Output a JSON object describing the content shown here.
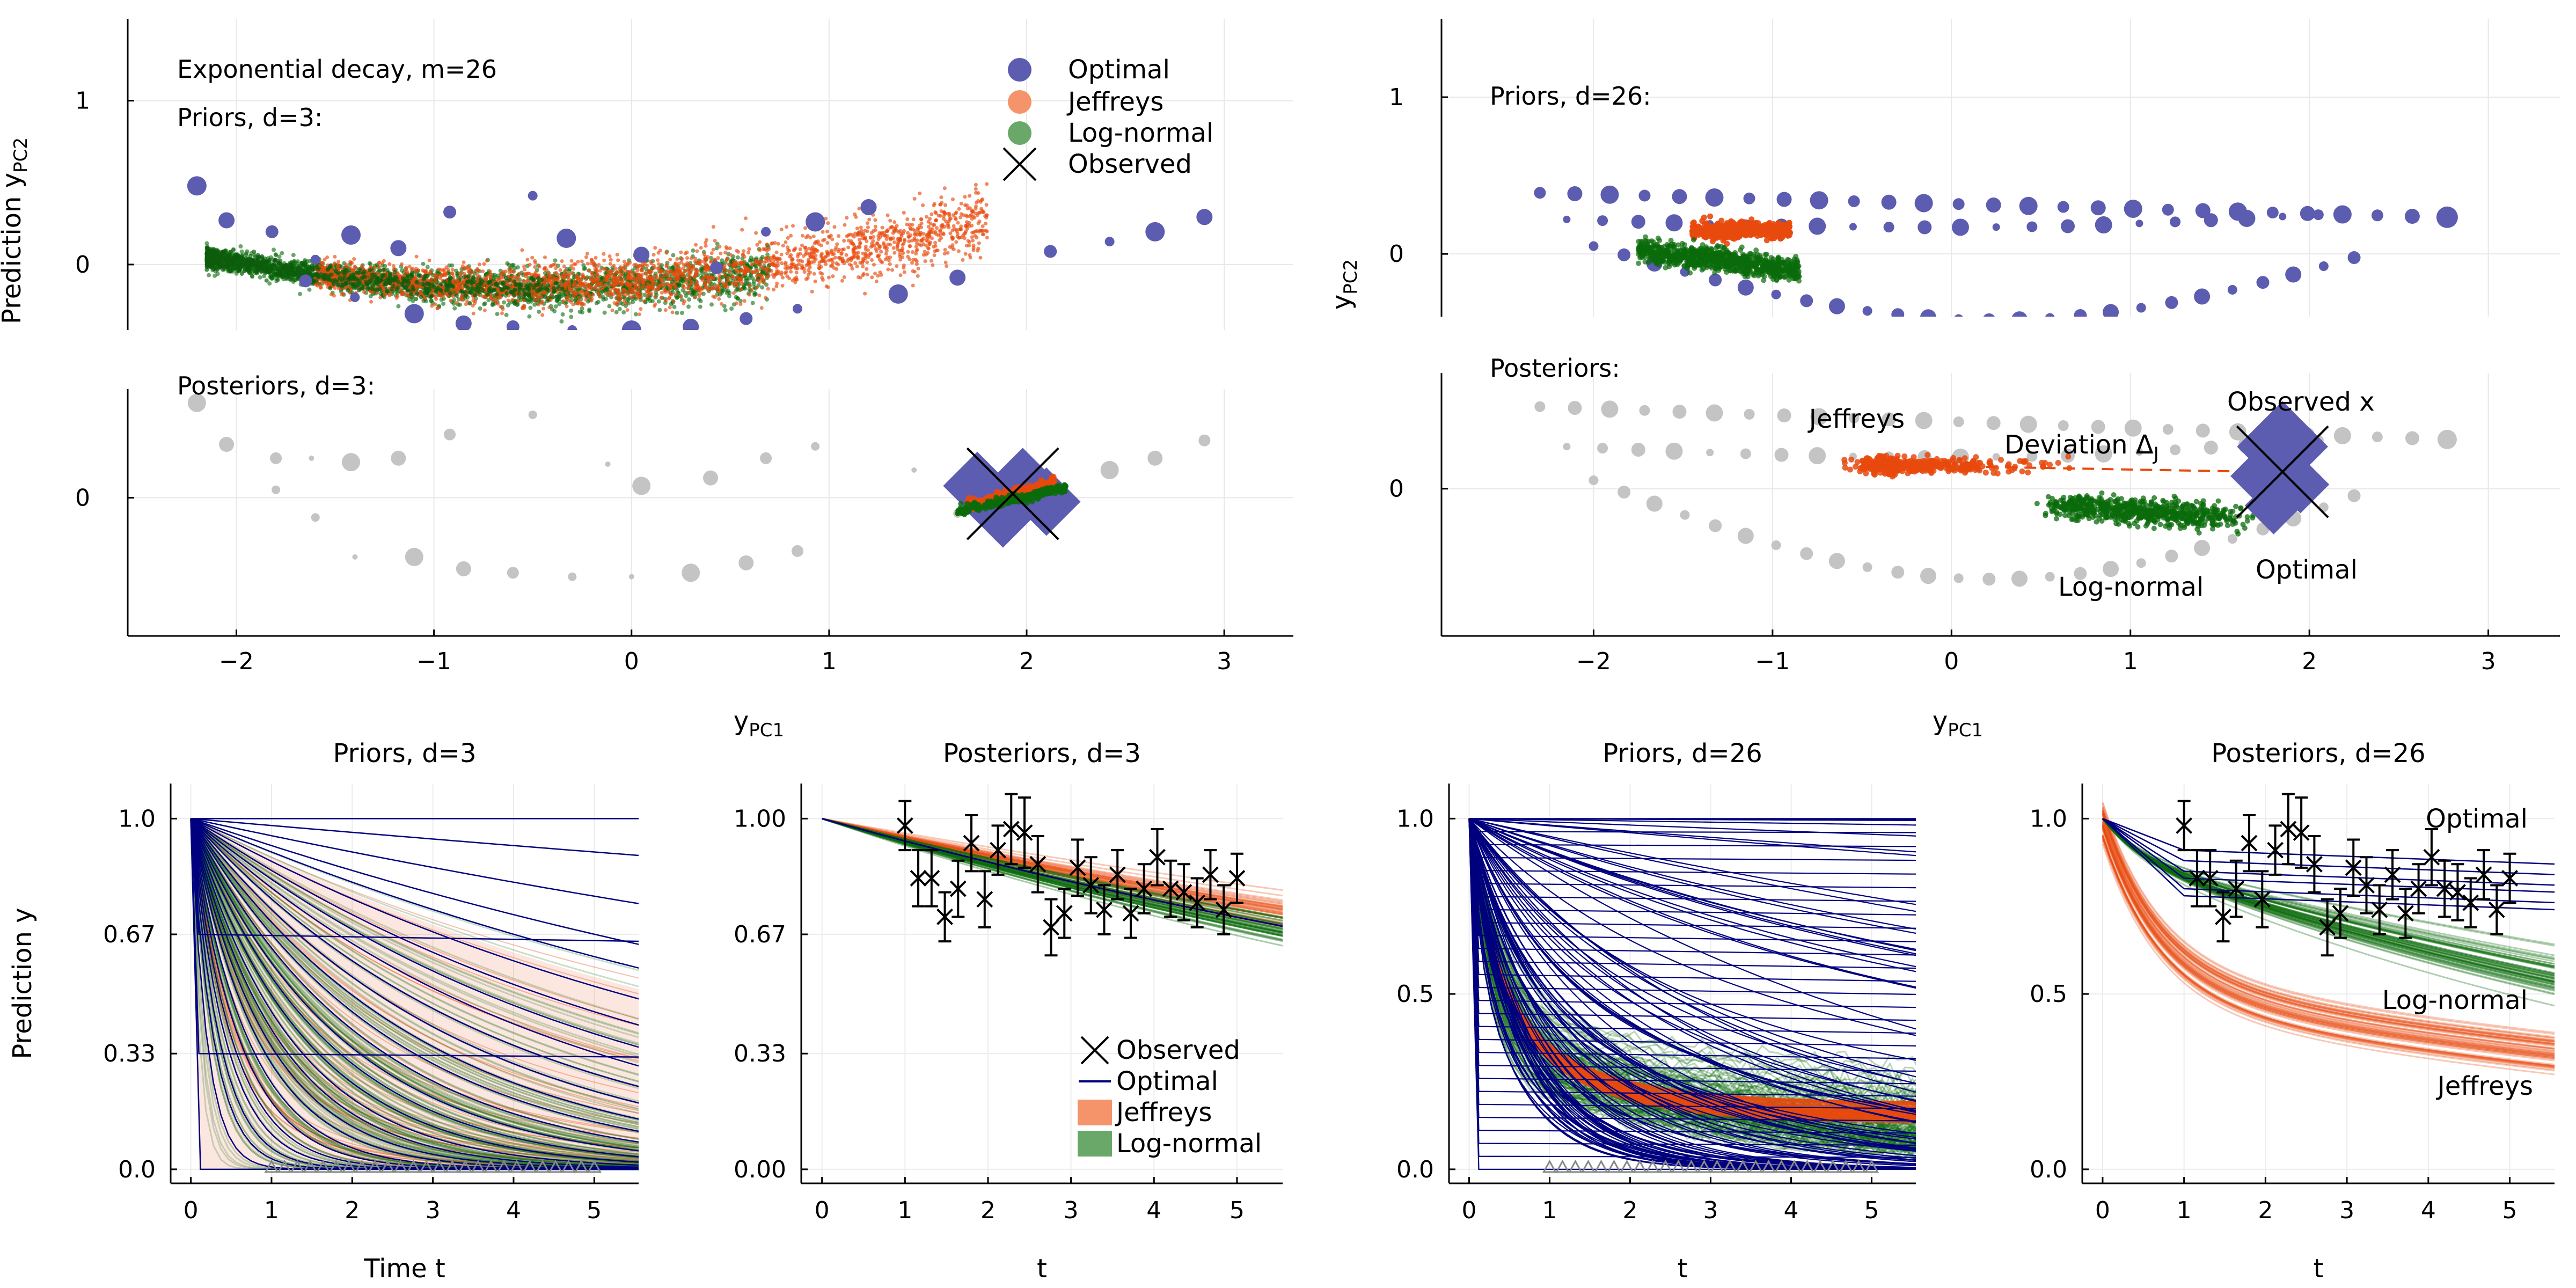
{
  "colors": {
    "optimal": "#00007f",
    "optimal_fill": "#5c5cb0",
    "jeffreys": "#e8490d",
    "jeffreys_fill": "#f5946a",
    "lognormal": "#0a6b0a",
    "lognormal_fill": "#6aa86a",
    "grey": "#c4c4c4"
  },
  "chart_data": [
    {
      "id": "pca_d3",
      "type": "scatter",
      "xlabel": "y",
      "xlabel_sub": "PC1",
      "ylabel": "Prediction y",
      "ylabel_sub": "PC2",
      "xlim": [
        -2.55,
        3.35
      ],
      "x_ticks": [
        -2,
        -1,
        0,
        1,
        2,
        3
      ],
      "top": {
        "ylim": [
          -0.4,
          1.5
        ],
        "y_ticks": [
          0,
          1
        ],
        "annotations": [
          "Exponential decay, m=26",
          "Priors, d=3:"
        ]
      },
      "bottom": {
        "ylim": [
          -0.7,
          0.55
        ],
        "y_ticks": [
          0
        ],
        "annotations": [
          "Posteriors, d=3:"
        ]
      },
      "legend": {
        "placement": "top-right",
        "entries": [
          "Optimal",
          "Jeffreys",
          "Log-normal",
          "Observed"
        ]
      },
      "observed": [
        1.93,
        0.02
      ],
      "optimal_prior": [
        [
          -2.2,
          0.48
        ],
        [
          -2.05,
          0.27
        ],
        [
          -1.82,
          0.2
        ],
        [
          -1.6,
          0.03
        ],
        [
          -1.42,
          0.18
        ],
        [
          -1.18,
          0.1
        ],
        [
          -0.92,
          0.32
        ],
        [
          -0.5,
          0.42
        ],
        [
          -0.33,
          0.16
        ],
        [
          0.05,
          0.06
        ],
        [
          0.43,
          -0.02
        ],
        [
          0.68,
          0.2
        ],
        [
          0.93,
          0.26
        ],
        [
          1.2,
          0.35
        ],
        [
          2.12,
          0.08
        ],
        [
          2.42,
          0.14
        ],
        [
          2.65,
          0.2
        ],
        [
          2.9,
          0.29
        ],
        [
          -1.65,
          -0.1
        ],
        [
          -1.4,
          -0.2
        ],
        [
          -1.1,
          -0.3
        ],
        [
          -0.85,
          -0.36
        ],
        [
          -0.6,
          -0.38
        ],
        [
          -0.3,
          -0.4
        ],
        [
          0,
          -0.4
        ],
        [
          0.3,
          -0.38
        ],
        [
          0.58,
          -0.33
        ],
        [
          0.84,
          -0.27
        ],
        [
          1.35,
          -0.18
        ],
        [
          1.65,
          -0.08
        ]
      ],
      "optimal_posterior": [
        [
          1.75,
          0.06
        ],
        [
          1.88,
          -0.08
        ],
        [
          1.98,
          0.08
        ],
        [
          2.1,
          -0.02
        ]
      ],
      "grey_posterior": [
        [
          -2.2,
          0.48
        ],
        [
          -2.05,
          0.27
        ],
        [
          -1.8,
          0.2
        ],
        [
          -1.8,
          0.04
        ],
        [
          -1.62,
          0.2
        ],
        [
          -1.42,
          0.18
        ],
        [
          -1.18,
          0.2
        ],
        [
          -0.92,
          0.32
        ],
        [
          -0.5,
          0.42
        ],
        [
          -0.12,
          0.17
        ],
        [
          0.05,
          0.06
        ],
        [
          0.4,
          0.1
        ],
        [
          0.68,
          0.2
        ],
        [
          0.93,
          0.26
        ],
        [
          1.43,
          0.14
        ],
        [
          2.42,
          0.14
        ],
        [
          2.65,
          0.2
        ],
        [
          2.9,
          0.29
        ],
        [
          -1.6,
          -0.1
        ],
        [
          -1.4,
          -0.3
        ],
        [
          -1.1,
          -0.3
        ],
        [
          -0.85,
          -0.36
        ],
        [
          -0.6,
          -0.38
        ],
        [
          -0.3,
          -0.4
        ],
        [
          0,
          -0.4
        ],
        [
          0.3,
          -0.38
        ],
        [
          0.58,
          -0.33
        ],
        [
          0.84,
          -0.27
        ],
        [
          1.65,
          -0.08
        ]
      ]
    },
    {
      "id": "pca_d26",
      "type": "scatter",
      "xlabel": "y",
      "xlabel_sub": "PC1",
      "ylabel": "y",
      "ylabel_sub": "PC2",
      "xlim": [
        -2.85,
        3.4
      ],
      "x_ticks": [
        -2,
        -1,
        0,
        1,
        2,
        3
      ],
      "top": {
        "ylim": [
          -0.4,
          1.5
        ],
        "y_ticks": [
          0,
          1
        ],
        "annotations": [
          "Priors, d=26:"
        ]
      },
      "bottom": {
        "ylim": [
          -0.7,
          0.55
        ],
        "y_ticks": [
          0
        ],
        "annotations": [
          "Posteriors:",
          "Jeffreys",
          "Deviation Δ",
          "J",
          "Observed x",
          "Log-normal",
          "Optimal"
        ]
      },
      "observed": [
        1.85,
        0.08
      ],
      "jeffreys_point": [
        -0.3,
        0.11
      ],
      "optimal_posterior": [
        [
          1.85,
          0.2
        ],
        [
          1.72,
          0.06
        ],
        [
          1.95,
          0.02
        ],
        [
          1.8,
          -0.08
        ]
      ]
    },
    {
      "id": "priors_d3",
      "type": "line",
      "title": "Priors, d=3",
      "xlabel": "Time t",
      "ylabel": "Prediction y",
      "xlim": [
        -0.25,
        5.55
      ],
      "ylim": [
        -0.04,
        1.1
      ],
      "x_ticks": [
        0,
        1,
        2,
        3,
        4,
        5
      ],
      "y_ticks": [
        0,
        0.33,
        0.67,
        1
      ],
      "y_tick_labels": [
        "0.0",
        "0.33",
        "0.67",
        "1.0"
      ],
      "observation_times": [
        1,
        1.16,
        1.32,
        1.48,
        1.64,
        1.8,
        1.96,
        2.12,
        2.28,
        2.44,
        2.6,
        2.76,
        2.92,
        3.08,
        3.24,
        3.4,
        3.56,
        3.72,
        3.88,
        4.04,
        4.2,
        4.36,
        4.52,
        4.68,
        4.84,
        5
      ]
    },
    {
      "id": "post_d3",
      "type": "line",
      "title": "Posteriors, d=3",
      "xlabel": "t",
      "xlim": [
        -0.25,
        5.55
      ],
      "ylim": [
        -0.04,
        1.1
      ],
      "x_ticks": [
        0,
        1,
        2,
        3,
        4,
        5
      ],
      "y_ticks": [
        0,
        0.33,
        0.67,
        1
      ],
      "y_tick_labels": [
        "0.00",
        "0.33",
        "0.67",
        "1.00"
      ],
      "legend": {
        "placement": "bottom-right",
        "entries": [
          "Observed",
          "Optimal",
          "Jeffreys",
          "Log-normal"
        ]
      },
      "observed": [
        [
          1,
          0.98,
          0.07
        ],
        [
          1.16,
          0.83,
          0.08
        ],
        [
          1.32,
          0.83,
          0.08
        ],
        [
          1.48,
          0.72,
          0.07
        ],
        [
          1.64,
          0.8,
          0.08
        ],
        [
          1.8,
          0.93,
          0.08
        ],
        [
          1.96,
          0.77,
          0.08
        ],
        [
          2.12,
          0.91,
          0.07
        ],
        [
          2.28,
          0.97,
          0.1
        ],
        [
          2.44,
          0.96,
          0.1
        ],
        [
          2.6,
          0.87,
          0.08
        ],
        [
          2.76,
          0.69,
          0.08
        ],
        [
          2.92,
          0.73,
          0.07
        ],
        [
          3.08,
          0.86,
          0.08
        ],
        [
          3.24,
          0.81,
          0.08
        ],
        [
          3.4,
          0.74,
          0.07
        ],
        [
          3.56,
          0.84,
          0.07
        ],
        [
          3.72,
          0.73,
          0.07
        ],
        [
          3.88,
          0.8,
          0.07
        ],
        [
          4.04,
          0.89,
          0.08
        ],
        [
          4.2,
          0.8,
          0.08
        ],
        [
          4.36,
          0.79,
          0.08
        ],
        [
          4.52,
          0.76,
          0.07
        ],
        [
          4.68,
          0.84,
          0.07
        ],
        [
          4.84,
          0.74,
          0.07
        ],
        [
          5,
          0.83,
          0.07
        ]
      ]
    },
    {
      "id": "priors_d26",
      "type": "line",
      "title": "Priors, d=26",
      "xlabel": "t",
      "xlim": [
        -0.25,
        5.55
      ],
      "ylim": [
        -0.04,
        1.1
      ],
      "x_ticks": [
        0,
        1,
        2,
        3,
        4,
        5
      ],
      "y_ticks": [
        0,
        0.5,
        1
      ],
      "y_tick_labels": [
        "0.0",
        "0.5",
        "1.0"
      ],
      "observation_times": [
        1,
        1.16,
        1.32,
        1.48,
        1.64,
        1.8,
        1.96,
        2.12,
        2.28,
        2.44,
        2.6,
        2.76,
        2.92,
        3.08,
        3.24,
        3.4,
        3.56,
        3.72,
        3.88,
        4.04,
        4.2,
        4.36,
        4.52,
        4.68,
        4.84,
        5
      ]
    },
    {
      "id": "post_d26",
      "type": "line",
      "title": "Posteriors, d=26",
      "xlabel": "t",
      "xlim": [
        -0.25,
        5.55
      ],
      "ylim": [
        -0.04,
        1.1
      ],
      "x_ticks": [
        0,
        1,
        2,
        3,
        4,
        5
      ],
      "y_ticks": [
        0,
        0.5,
        1
      ],
      "y_tick_labels": [
        "0.0",
        "0.5",
        "1.0"
      ],
      "annotations": [
        "Optimal",
        "Log-normal",
        "Jeffreys"
      ],
      "observed": [
        [
          1,
          0.98,
          0.07
        ],
        [
          1.16,
          0.83,
          0.08
        ],
        [
          1.32,
          0.83,
          0.08
        ],
        [
          1.48,
          0.72,
          0.07
        ],
        [
          1.64,
          0.8,
          0.08
        ],
        [
          1.8,
          0.93,
          0.08
        ],
        [
          1.96,
          0.77,
          0.08
        ],
        [
          2.12,
          0.91,
          0.07
        ],
        [
          2.28,
          0.97,
          0.1
        ],
        [
          2.44,
          0.96,
          0.1
        ],
        [
          2.6,
          0.87,
          0.08
        ],
        [
          2.76,
          0.69,
          0.08
        ],
        [
          2.92,
          0.73,
          0.07
        ],
        [
          3.08,
          0.86,
          0.08
        ],
        [
          3.24,
          0.81,
          0.08
        ],
        [
          3.4,
          0.74,
          0.07
        ],
        [
          3.56,
          0.84,
          0.07
        ],
        [
          3.72,
          0.73,
          0.07
        ],
        [
          3.88,
          0.8,
          0.07
        ],
        [
          4.04,
          0.89,
          0.08
        ],
        [
          4.2,
          0.8,
          0.08
        ],
        [
          4.36,
          0.79,
          0.08
        ],
        [
          4.52,
          0.76,
          0.07
        ],
        [
          4.68,
          0.84,
          0.07
        ],
        [
          4.84,
          0.74,
          0.07
        ],
        [
          5,
          0.83,
          0.07
        ]
      ]
    }
  ]
}
